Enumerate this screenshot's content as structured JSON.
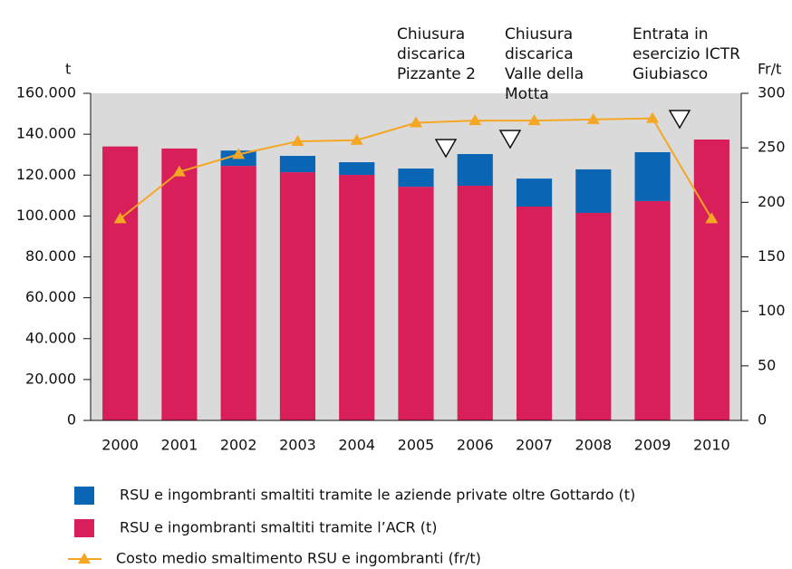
{
  "chart_data": {
    "type": "bar",
    "y_label": "t",
    "y2_label": "Fr/t",
    "categories": [
      "2000",
      "2001",
      "2002",
      "2003",
      "2004",
      "2005",
      "2006",
      "2007",
      "2008",
      "2009",
      "2010"
    ],
    "series": [
      {
        "name": "RSU  e ingombranti smaltiti tramite l’ACR (t)",
        "color": "#d81f5a",
        "type": "bar",
        "values": [
          134000,
          133000,
          124500,
          121400,
          120100,
          114300,
          114800,
          104600,
          101500,
          107300,
          137400
        ]
      },
      {
        "name": "RSU  e ingombranti smaltiti tramite le aziende private oltre Gottardo (t)",
        "color": "#0b65b5",
        "type": "bar",
        "values": [
          0,
          0,
          7500,
          8000,
          6200,
          8900,
          15500,
          13700,
          21300,
          23900,
          0
        ]
      },
      {
        "name": "Costo medio smaltimento RSU e ingombranti (fr/t)",
        "color": "#f5a623",
        "type": "line",
        "axis": "y2",
        "values": [
          185,
          228,
          244,
          256,
          257,
          273,
          275,
          275,
          276,
          277,
          185
        ]
      }
    ],
    "ylim": [
      0,
      160000
    ],
    "yticks": [
      0,
      {
        "value": 20000,
        "label": "20.000"
      },
      {
        "value": 40000,
        "label": "40.000"
      },
      {
        "value": 60000,
        "label": "60.000"
      },
      {
        "value": 80000,
        "label": "80.000"
      },
      {
        "value": 100000,
        "label": "100.000"
      },
      {
        "value": 120000,
        "label": "120.000"
      },
      {
        "value": 140000,
        "label": "140.000"
      },
      {
        "value": 160000,
        "label": "160.000"
      }
    ],
    "y2lim": [
      0,
      300
    ],
    "y2ticks": [
      0,
      50,
      100,
      150,
      200,
      250,
      300
    ],
    "annotations": [
      [
        "Chiusura",
        "discarica",
        "Pizzante 2"
      ],
      [
        "Chiusura",
        "discarica",
        "Valle della",
        "Motta"
      ],
      [
        "Entrata in",
        "esercizio ICTR",
        "Giubiasco"
      ]
    ]
  }
}
